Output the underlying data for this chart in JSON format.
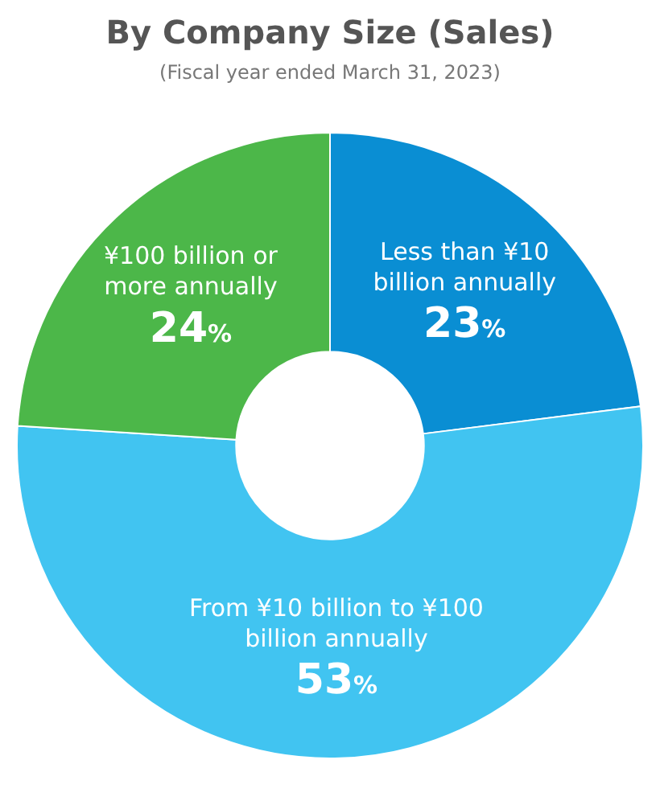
{
  "chart_data": {
    "type": "donut",
    "title": "By Company Size (Sales)",
    "subtitle": "(Fiscal year ended March 31, 2023)",
    "categories": [
      "Less than ¥10 billion annually",
      "From ¥10 billion to ¥100 billion annually",
      "¥100 billion or more annually"
    ],
    "values": [
      23,
      53,
      24
    ],
    "colors": [
      "#0a8ed3",
      "#41c4f1",
      "#4cb749"
    ],
    "value_labels": [
      "23%",
      "53%",
      "24%"
    ],
    "legend": false
  }
}
